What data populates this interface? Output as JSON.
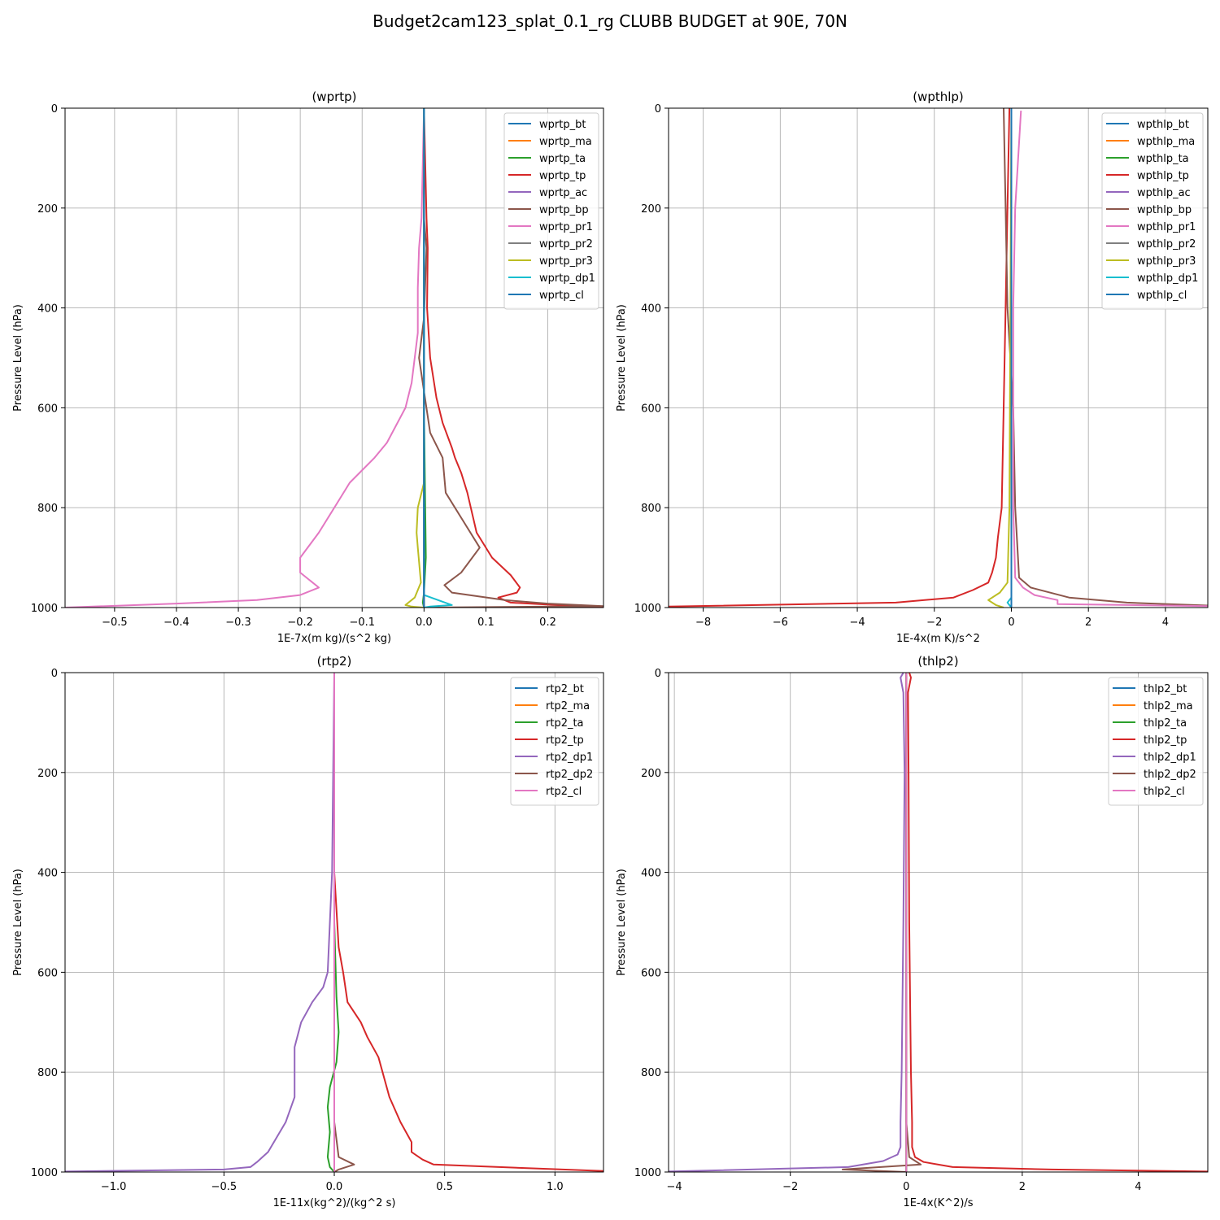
{
  "figure": {
    "title": "Budget2cam123_splat_0.1_rg CLUBB BUDGET at 90E, 70N"
  },
  "colors": {
    "c0": "#1f77b4",
    "c1": "#ff7f0e",
    "c2": "#2ca02c",
    "c3": "#d62728",
    "c4": "#9467bd",
    "c5": "#8c564b",
    "c6": "#e377c2",
    "c7": "#7f7f7f",
    "c8": "#bcbd22",
    "c9": "#17becf",
    "grid": "#b0b0b0"
  },
  "chart_data": [
    {
      "type": "line",
      "title": "(wprtp)",
      "xlabel": "1E-7x(m kg)/(s^2 kg)",
      "ylabel": "Pressure Level (hPa)",
      "xlim": [
        -0.58,
        0.29
      ],
      "ylim": [
        1000,
        0
      ],
      "xticks": [
        -0.5,
        -0.4,
        -0.3,
        -0.2,
        -0.1,
        0.0,
        0.1,
        0.2
      ],
      "xtick_labels": [
        "−0.5",
        "−0.4",
        "−0.3",
        "−0.2",
        "−0.1",
        "0.0",
        "0.1",
        "0.2"
      ],
      "yticks": [
        0,
        200,
        400,
        600,
        800,
        1000
      ],
      "ytick_labels": [
        "0",
        "200",
        "400",
        "600",
        "800",
        "1000"
      ],
      "grid": true,
      "legend_position": "top-right",
      "series": [
        {
          "name": "wprtp_bt",
          "color": "c0",
          "x": [
            0,
            0,
            0
          ],
          "y": [
            0,
            500,
            1000
          ]
        },
        {
          "name": "wprtp_ma",
          "color": "c1",
          "x": [
            0,
            0,
            0
          ],
          "y": [
            0,
            500,
            1000
          ]
        },
        {
          "name": "wprtp_ta",
          "color": "c2",
          "x": [
            0,
            0,
            0.003,
            0,
            -0.002,
            0
          ],
          "y": [
            0,
            600,
            900,
            970,
            990,
            1000
          ]
        },
        {
          "name": "wprtp_tp",
          "color": "c3",
          "x": [
            0,
            0.004,
            0.006,
            0.005,
            0.01,
            0.02,
            0.03,
            0.045,
            0.05,
            0.06,
            0.07,
            0.085,
            0.11,
            0.14,
            0.155,
            0.15,
            0.12,
            0.14,
            0.29
          ],
          "y": [
            0,
            220,
            280,
            400,
            500,
            580,
            630,
            680,
            700,
            730,
            770,
            850,
            900,
            935,
            960,
            970,
            980,
            990,
            1000
          ]
        },
        {
          "name": "wprtp_ac",
          "color": "c4",
          "x": [
            0,
            0
          ],
          "y": [
            0,
            1000
          ]
        },
        {
          "name": "wprtp_bp",
          "color": "c5",
          "x": [
            0,
            0,
            0.004,
            0,
            -0.008,
            0.01,
            0.03,
            0.035,
            0.06,
            0.09,
            0.06,
            0.033,
            0.045,
            0.13,
            0.2,
            0.29,
            0
          ],
          "y": [
            0,
            220,
            280,
            420,
            500,
            650,
            700,
            770,
            820,
            880,
            930,
            955,
            970,
            985,
            992,
            997,
            1000
          ]
        },
        {
          "name": "wprtp_pr1",
          "color": "c6",
          "x": [
            0,
            -0.004,
            -0.008,
            -0.01,
            -0.01,
            -0.02,
            -0.03,
            -0.06,
            -0.08,
            -0.12,
            -0.14,
            -0.17,
            -0.2,
            -0.2,
            -0.17,
            -0.2,
            -0.27,
            -0.4,
            -0.58
          ],
          "y": [
            0,
            220,
            280,
            360,
            450,
            550,
            600,
            670,
            700,
            750,
            790,
            850,
            900,
            930,
            960,
            975,
            985,
            992,
            1000
          ]
        },
        {
          "name": "wprtp_pr2",
          "color": "c7",
          "x": [
            0,
            0
          ],
          "y": [
            0,
            1000
          ]
        },
        {
          "name": "wprtp_pr3",
          "color": "c8",
          "x": [
            0,
            0,
            0,
            -0.01,
            -0.012,
            -0.01,
            -0.005,
            -0.015,
            -0.03,
            -0.02,
            0
          ],
          "y": [
            0,
            500,
            750,
            800,
            850,
            880,
            950,
            980,
            995,
            998,
            1000
          ]
        },
        {
          "name": "wprtp_dp1",
          "color": "c9",
          "x": [
            0,
            0,
            0.045,
            0.01,
            0
          ],
          "y": [
            0,
            975,
            995,
            998,
            1000
          ]
        },
        {
          "name": "wprtp_cl",
          "color": "c0",
          "x": [
            0,
            0
          ],
          "y": [
            0,
            1000
          ]
        }
      ]
    },
    {
      "type": "line",
      "title": "(wpthlp)",
      "xlabel": "1E-4x(m K)/s^2",
      "ylabel": "Pressure Level (hPa)",
      "xlim": [
        -8.9,
        5.1
      ],
      "ylim": [
        1000,
        0
      ],
      "xticks": [
        -8,
        -6,
        -4,
        -2,
        0,
        2,
        4
      ],
      "xtick_labels": [
        "−8",
        "−6",
        "−4",
        "−2",
        "0",
        "2",
        "4"
      ],
      "yticks": [
        0,
        200,
        400,
        600,
        800,
        1000
      ],
      "ytick_labels": [
        "0",
        "200",
        "400",
        "600",
        "800",
        "1000"
      ],
      "grid": true,
      "legend_position": "top-right",
      "series": [
        {
          "name": "wpthlp_bt",
          "color": "c0",
          "x": [
            0,
            0
          ],
          "y": [
            0,
            1000
          ]
        },
        {
          "name": "wpthlp_ma",
          "color": "c1",
          "x": [
            0,
            0
          ],
          "y": [
            0,
            1000
          ]
        },
        {
          "name": "wpthlp_ta",
          "color": "c2",
          "x": [
            0,
            0
          ],
          "y": [
            0,
            1000
          ]
        },
        {
          "name": "wpthlp_tp",
          "color": "c3",
          "x": [
            -0.05,
            -0.1,
            -0.15,
            -0.2,
            -0.25,
            -0.35,
            -0.4,
            -0.5,
            -0.6,
            -1.0,
            -1.5,
            -3.0,
            -8.9
          ],
          "y": [
            0,
            200,
            400,
            600,
            800,
            860,
            900,
            930,
            950,
            965,
            980,
            990,
            998
          ]
        },
        {
          "name": "wpthlp_ac",
          "color": "c4",
          "x": [
            0,
            0
          ],
          "y": [
            0,
            1000
          ]
        },
        {
          "name": "wpthlp_bp",
          "color": "c5",
          "x": [
            -0.2,
            -0.15,
            -0.1,
            0.05,
            0.1,
            0.2,
            0.5,
            1.5,
            3.0,
            5.1
          ],
          "y": [
            0,
            200,
            400,
            600,
            800,
            940,
            960,
            980,
            990,
            996
          ]
        },
        {
          "name": "wpthlp_pr1",
          "color": "c6",
          "x": [
            0.25,
            0.1,
            0.05,
            0.05,
            0.05,
            0.1,
            0.3,
            0.6,
            1.2,
            1.2,
            5.1
          ],
          "y": [
            5,
            200,
            400,
            600,
            800,
            940,
            960,
            975,
            985,
            993,
            997
          ]
        },
        {
          "name": "wpthlp_pr2",
          "color": "c7",
          "x": [
            0,
            0
          ],
          "y": [
            0,
            1000
          ]
        },
        {
          "name": "wpthlp_pr3",
          "color": "c8",
          "x": [
            0,
            -0.05,
            -0.1,
            -0.3,
            -0.6,
            -0.4,
            -0.2
          ],
          "y": [
            0,
            800,
            950,
            970,
            985,
            995,
            1000
          ]
        },
        {
          "name": "wpthlp_dp1",
          "color": "c9",
          "x": [
            0,
            0,
            -0.1,
            0
          ],
          "y": [
            0,
            980,
            990,
            1000
          ]
        },
        {
          "name": "wpthlp_cl",
          "color": "c0",
          "x": [
            0,
            0
          ],
          "y": [
            0,
            1000
          ]
        }
      ]
    },
    {
      "type": "line",
      "title": "(rtp2)",
      "xlabel": "1E-11x(kg^2)/(kg^2 s)",
      "ylabel": "Pressure Level (hPa)",
      "xlim": [
        -1.22,
        1.22
      ],
      "ylim": [
        1000,
        0
      ],
      "xticks": [
        -1.0,
        -0.5,
        0.0,
        0.5,
        1.0
      ],
      "xtick_labels": [
        "−1.0",
        "−0.5",
        "0.0",
        "0.5",
        "1.0"
      ],
      "yticks": [
        0,
        200,
        400,
        600,
        800,
        1000
      ],
      "ytick_labels": [
        "0",
        "200",
        "400",
        "600",
        "800",
        "1000"
      ],
      "grid": true,
      "legend_position": "top-right",
      "series": [
        {
          "name": "rtp2_bt",
          "color": "c0",
          "x": [
            0,
            0
          ],
          "y": [
            0,
            1000
          ]
        },
        {
          "name": "rtp2_ma",
          "color": "c1",
          "x": [
            0,
            0
          ],
          "y": [
            0,
            1000
          ]
        },
        {
          "name": "rtp2_ta",
          "color": "c2",
          "x": [
            0,
            0,
            0.01,
            0.02,
            0.01,
            -0.02,
            -0.03,
            -0.02,
            -0.03,
            -0.02,
            0
          ],
          "y": [
            0,
            500,
            650,
            720,
            780,
            830,
            870,
            920,
            970,
            990,
            1000
          ]
        },
        {
          "name": "rtp2_tp",
          "color": "c3",
          "x": [
            0,
            0,
            0.02,
            0.04,
            0.06,
            0.12,
            0.15,
            0.2,
            0.25,
            0.3,
            0.35,
            0.35,
            0.4,
            0.45,
            1.22
          ],
          "y": [
            0,
            400,
            550,
            600,
            660,
            700,
            730,
            770,
            850,
            900,
            940,
            960,
            975,
            985,
            998
          ]
        },
        {
          "name": "rtp2_dp1",
          "color": "c4",
          "x": [
            0,
            -0.01,
            -0.03,
            -0.05,
            -0.1,
            -0.15,
            -0.18,
            -0.18,
            -0.22,
            -0.3,
            -0.35,
            -0.38,
            -0.5,
            -1.22
          ],
          "y": [
            0,
            400,
            600,
            630,
            660,
            700,
            750,
            850,
            900,
            960,
            980,
            990,
            995,
            999
          ]
        },
        {
          "name": "rtp2_dp2",
          "color": "c5",
          "x": [
            0,
            0,
            0.02,
            0.09,
            0.02,
            0
          ],
          "y": [
            0,
            900,
            970,
            985,
            995,
            1000
          ]
        },
        {
          "name": "rtp2_cl",
          "color": "c6",
          "x": [
            0,
            0
          ],
          "y": [
            0,
            1000
          ]
        }
      ]
    },
    {
      "type": "line",
      "title": "(thlp2)",
      "xlabel": "1E-4x(K^2)/s",
      "ylabel": "Pressure Level (hPa)",
      "xlim": [
        -4.1,
        5.2
      ],
      "ylim": [
        1000,
        0
      ],
      "xticks": [
        -4,
        -2,
        0,
        2,
        4
      ],
      "xtick_labels": [
        "−4",
        "−2",
        "0",
        "2",
        "4"
      ],
      "yticks": [
        0,
        200,
        400,
        600,
        800,
        1000
      ],
      "ytick_labels": [
        "0",
        "200",
        "400",
        "600",
        "800",
        "1000"
      ],
      "grid": true,
      "legend_position": "top-right",
      "series": [
        {
          "name": "thlp2_bt",
          "color": "c0",
          "x": [
            0,
            0
          ],
          "y": [
            0,
            1000
          ]
        },
        {
          "name": "thlp2_ma",
          "color": "c1",
          "x": [
            0,
            0
          ],
          "y": [
            0,
            1000
          ]
        },
        {
          "name": "thlp2_ta",
          "color": "c2",
          "x": [
            0,
            0
          ],
          "y": [
            0,
            1000
          ]
        },
        {
          "name": "thlp2_tp",
          "color": "c3",
          "x": [
            0.05,
            0.08,
            0.03,
            0.04,
            0.05,
            0.08,
            0.1,
            0.1,
            0.15,
            0.3,
            0.8,
            2.5,
            5.2
          ],
          "y": [
            0,
            10,
            40,
            200,
            500,
            800,
            900,
            950,
            970,
            980,
            990,
            995,
            999
          ]
        },
        {
          "name": "thlp2_dp1",
          "color": "c4",
          "x": [
            -0.05,
            -0.1,
            -0.05,
            -0.03,
            -0.05,
            -0.08,
            -0.1,
            -0.1,
            -0.15,
            -0.4,
            -1.0,
            -4.1
          ],
          "y": [
            0,
            10,
            40,
            200,
            500,
            800,
            900,
            950,
            965,
            978,
            990,
            999
          ]
        },
        {
          "name": "thlp2_dp2",
          "color": "c5",
          "x": [
            0,
            0,
            0.05,
            0.25,
            -1.1,
            0
          ],
          "y": [
            0,
            900,
            970,
            985,
            995,
            1000
          ]
        },
        {
          "name": "thlp2_cl",
          "color": "c6",
          "x": [
            0,
            0
          ],
          "y": [
            0,
            1000
          ]
        }
      ]
    }
  ]
}
